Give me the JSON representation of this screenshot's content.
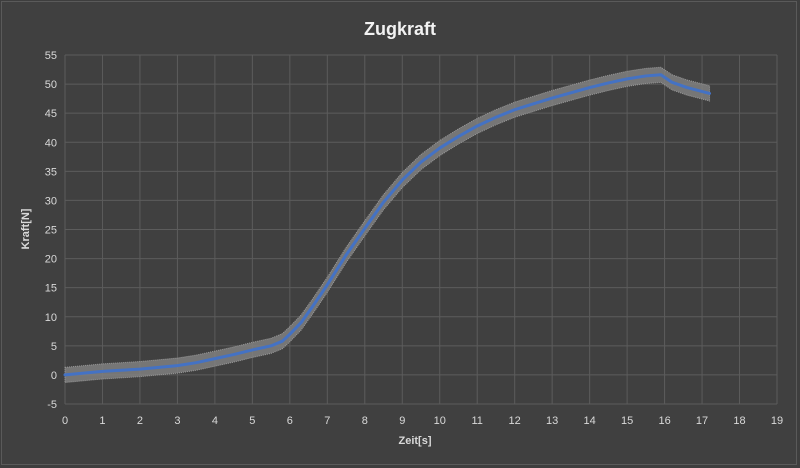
{
  "chart_data": {
    "type": "line",
    "title": "Zugkraft",
    "xlabel": "Zeit[s]",
    "ylabel": "Kraft[N]",
    "xlim": [
      0,
      19
    ],
    "ylim": [
      -5,
      55
    ],
    "x_ticks": [
      "0",
      "1",
      "2",
      "3",
      "4",
      "5",
      "6",
      "7",
      "8",
      "9",
      "10",
      "11",
      "12",
      "13",
      "14",
      "15",
      "16",
      "17",
      "18",
      "19"
    ],
    "y_ticks": [
      "-5",
      "0",
      "5",
      "10",
      "15",
      "20",
      "25",
      "30",
      "35",
      "40",
      "45",
      "50",
      "55"
    ],
    "grid": true,
    "legend": "none",
    "error_band": 1.3,
    "series": [
      {
        "color": "#4472c4",
        "band_color": "#808080",
        "points": [
          [
            0,
            0.0
          ],
          [
            0.5,
            0.3
          ],
          [
            1,
            0.6
          ],
          [
            1.5,
            0.8
          ],
          [
            2,
            1.0
          ],
          [
            2.5,
            1.3
          ],
          [
            3,
            1.6
          ],
          [
            3.5,
            2.1
          ],
          [
            4,
            2.8
          ],
          [
            4.5,
            3.5
          ],
          [
            5,
            4.3
          ],
          [
            5.5,
            5.0
          ],
          [
            5.8,
            5.8
          ],
          [
            6,
            7.0
          ],
          [
            6.3,
            9.0
          ],
          [
            6.6,
            11.7
          ],
          [
            7,
            15.5
          ],
          [
            7.5,
            20.6
          ],
          [
            8,
            25.2
          ],
          [
            8.5,
            29.7
          ],
          [
            9,
            33.5
          ],
          [
            9.5,
            36.6
          ],
          [
            10,
            39.0
          ],
          [
            10.5,
            41.0
          ],
          [
            11,
            42.8
          ],
          [
            11.5,
            44.3
          ],
          [
            12,
            45.6
          ],
          [
            12.5,
            46.6
          ],
          [
            13,
            47.6
          ],
          [
            13.5,
            48.5
          ],
          [
            14,
            49.4
          ],
          [
            14.5,
            50.2
          ],
          [
            15,
            50.9
          ],
          [
            15.5,
            51.4
          ],
          [
            15.9,
            51.6
          ],
          [
            16.2,
            50.3
          ],
          [
            16.6,
            49.4
          ],
          [
            17.2,
            48.4
          ]
        ]
      }
    ]
  }
}
